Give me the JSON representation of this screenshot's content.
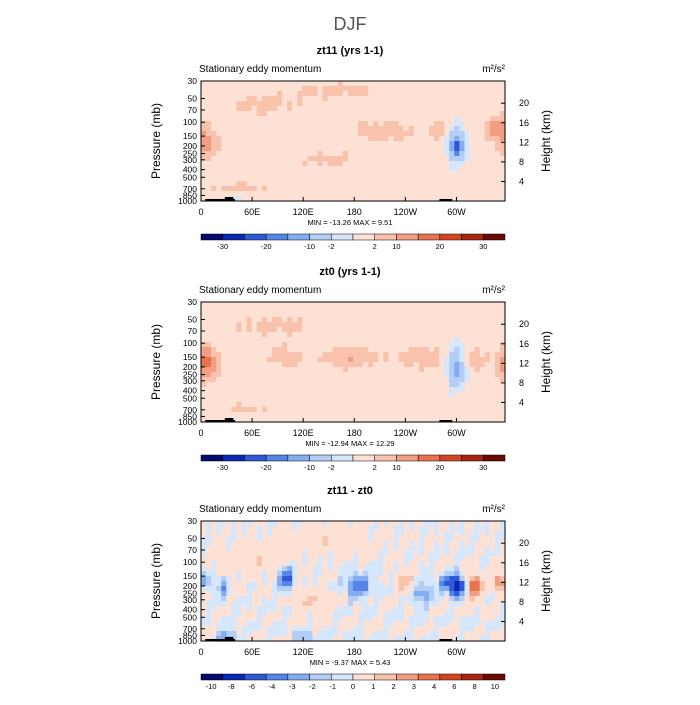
{
  "page": {
    "title": "DJF"
  },
  "colors": {
    "cmap": [
      "#050a6e",
      "#0b28b3",
      "#2f58d6",
      "#5585e6",
      "#84acf0",
      "#b2cdf6",
      "#d6e6fb",
      "#fde1d5",
      "#f8c2ad",
      "#f19e82",
      "#e7734f",
      "#d4451f",
      "#a82412",
      "#6b0a05"
    ],
    "background_field": "#d6e6fb",
    "topography": "#000000"
  },
  "chart_data": [
    {
      "type": "heatmap",
      "title": "zt11 (yrs 1-1)",
      "subtitle_left": "Stationary eddy momentum",
      "subtitle_right": "m²/s²",
      "ylabel": "Pressure (mb)",
      "ylabel_right": "Height (km)",
      "x_ticks": [
        "0",
        "60E",
        "120E",
        "180",
        "120W",
        "60W"
      ],
      "x_tick_values": [
        0,
        60,
        120,
        180,
        240,
        300
      ],
      "xlim": [
        0,
        357
      ],
      "y_ticks": [
        "30",
        "50",
        "70",
        "100",
        "150",
        "200",
        "250",
        "300",
        "400",
        "500",
        "700",
        "850",
        "1000"
      ],
      "y_tick_values": [
        30,
        50,
        70,
        100,
        150,
        200,
        250,
        300,
        400,
        500,
        700,
        850,
        1000
      ],
      "ylim": [
        30,
        1000
      ],
      "height_ticks": [
        "20",
        "16",
        "12",
        "8",
        "4"
      ],
      "height_tick_values": [
        20,
        16,
        12,
        8,
        4
      ],
      "stats": "MIN = -13.26   MAX =   9.51",
      "colorbar_labels": [
        "-30",
        "-20",
        "-10",
        "-2",
        "2",
        "10",
        "20",
        "30"
      ],
      "contour_levels": [
        -40,
        -30,
        -25,
        -20,
        -15,
        -10,
        -5,
        -2,
        2,
        5,
        10,
        15,
        20,
        25,
        30,
        40
      ],
      "features": [
        {
          "lon": 5,
          "p": 180,
          "value": 7,
          "spread_lon": 10,
          "spread_logp": 0.14
        },
        {
          "lon": 300,
          "p": 190,
          "value": -11,
          "spread_lon": 8,
          "spread_logp": 0.17
        },
        {
          "lon": 300,
          "p": 210,
          "value": -13,
          "spread_lon": 4,
          "spread_logp": 0.08
        },
        {
          "lon": 280,
          "p": 120,
          "value": 4,
          "spread_lon": 10,
          "spread_logp": 0.1
        },
        {
          "lon": 345,
          "p": 120,
          "value": 6,
          "spread_lon": 10,
          "spread_logp": 0.12
        },
        {
          "lon": 215,
          "p": 130,
          "value": 4,
          "spread_lon": 25,
          "spread_logp": 0.1
        },
        {
          "lon": 70,
          "p": 60,
          "value": 3,
          "spread_lon": 35,
          "spread_logp": 0.1
        },
        {
          "lon": 160,
          "p": 40,
          "value": 3,
          "spread_lon": 40,
          "spread_logp": 0.08
        },
        {
          "lon": 45,
          "p": 700,
          "value": 4,
          "spread_lon": 20,
          "spread_logp": 0.06
        },
        {
          "lon": 150,
          "p": 300,
          "value": 3,
          "spread_lon": 25,
          "spread_logp": 0.08
        },
        {
          "lon": 40,
          "p": 900,
          "value": -6,
          "spread_lon": 4,
          "spread_logp": 0.04
        }
      ]
    },
    {
      "type": "heatmap",
      "title": "zt0 (yrs 1-1)",
      "subtitle_left": "Stationary eddy momentum",
      "subtitle_right": "m²/s²",
      "ylabel": "Pressure (mb)",
      "ylabel_right": "Height (km)",
      "x_ticks": [
        "0",
        "60E",
        "120E",
        "180",
        "120W",
        "60W"
      ],
      "x_tick_values": [
        0,
        60,
        120,
        180,
        240,
        300
      ],
      "xlim": [
        0,
        357
      ],
      "y_ticks": [
        "30",
        "50",
        "70",
        "100",
        "150",
        "200",
        "250",
        "300",
        "400",
        "500",
        "700",
        "850",
        "1000"
      ],
      "y_tick_values": [
        30,
        50,
        70,
        100,
        150,
        200,
        250,
        300,
        400,
        500,
        700,
        850,
        1000
      ],
      "ylim": [
        30,
        1000
      ],
      "height_ticks": [
        "20",
        "16",
        "12",
        "8",
        "4"
      ],
      "height_tick_values": [
        20,
        16,
        12,
        8,
        4
      ],
      "stats": "MIN = -12.94   MAX =  12.29",
      "colorbar_labels": [
        "-30",
        "-20",
        "-10",
        "-2",
        "2",
        "10",
        "20",
        "30"
      ],
      "contour_levels": [
        -40,
        -30,
        -25,
        -20,
        -15,
        -10,
        -5,
        -2,
        2,
        5,
        10,
        15,
        20,
        25,
        30,
        40
      ],
      "features": [
        {
          "lon": 5,
          "p": 180,
          "value": 12,
          "spread_lon": 10,
          "spread_logp": 0.14
        },
        {
          "lon": 300,
          "p": 200,
          "value": -12,
          "spread_lon": 8,
          "spread_logp": 0.18
        },
        {
          "lon": 320,
          "p": 160,
          "value": 5,
          "spread_lon": 10,
          "spread_logp": 0.1
        },
        {
          "lon": 175,
          "p": 150,
          "value": 5,
          "spread_lon": 25,
          "spread_logp": 0.1
        },
        {
          "lon": 100,
          "p": 150,
          "value": 4,
          "spread_lon": 15,
          "spread_logp": 0.1
        },
        {
          "lon": 90,
          "p": 60,
          "value": 3,
          "spread_lon": 40,
          "spread_logp": 0.1
        },
        {
          "lon": 260,
          "p": 150,
          "value": 4,
          "spread_lon": 20,
          "spread_logp": 0.12
        },
        {
          "lon": 50,
          "p": 700,
          "value": 3,
          "spread_lon": 20,
          "spread_logp": 0.06
        },
        {
          "lon": 40,
          "p": 900,
          "value": -5,
          "spread_lon": 4,
          "spread_logp": 0.04
        }
      ]
    },
    {
      "type": "heatmap",
      "title": "zt11 - zt0",
      "subtitle_left": "Stationary eddy momentum",
      "subtitle_right": "m²/s²",
      "ylabel": "Pressure (mb)",
      "ylabel_right": "Height (km)",
      "x_ticks": [
        "0",
        "60E",
        "120E",
        "180",
        "120W",
        "60W"
      ],
      "x_tick_values": [
        0,
        60,
        120,
        180,
        240,
        300
      ],
      "xlim": [
        0,
        357
      ],
      "y_ticks": [
        "30",
        "50",
        "70",
        "100",
        "150",
        "200",
        "250",
        "300",
        "400",
        "500",
        "700",
        "850",
        "1000"
      ],
      "y_tick_values": [
        30,
        50,
        70,
        100,
        150,
        200,
        250,
        300,
        400,
        500,
        700,
        850,
        1000
      ],
      "ylim": [
        30,
        1000
      ],
      "height_ticks": [
        "20",
        "16",
        "12",
        "8",
        "4"
      ],
      "height_tick_values": [
        20,
        16,
        12,
        8,
        4
      ],
      "stats": "MIN =  -9.37   MAX =   5.43",
      "colorbar_labels": [
        "-10",
        "-8",
        "-6",
        "-4",
        "-3",
        "-2",
        "-1",
        "0",
        "1",
        "2",
        "3",
        "4",
        "6",
        "8",
        "10"
      ],
      "contour_levels": [
        -12,
        -10,
        -8,
        -6,
        -4,
        -3,
        -2,
        -1,
        0,
        1,
        2,
        3,
        4,
        6,
        8,
        10,
        12
      ],
      "features": [
        {
          "lon": 300,
          "p": 200,
          "value": -9,
          "spread_lon": 6,
          "spread_logp": 0.09
        },
        {
          "lon": 287,
          "p": 180,
          "value": -3,
          "spread_lon": 6,
          "spread_logp": 0.08
        },
        {
          "lon": 322,
          "p": 200,
          "value": 5.4,
          "spread_lon": 6,
          "spread_logp": 0.12
        },
        {
          "lon": 350,
          "p": 180,
          "value": 4,
          "spread_lon": 6,
          "spread_logp": 0.1
        },
        {
          "lon": 100,
          "p": 160,
          "value": -5,
          "spread_lon": 6,
          "spread_logp": 0.1
        },
        {
          "lon": 185,
          "p": 200,
          "value": -4,
          "spread_lon": 10,
          "spread_logp": 0.1
        },
        {
          "lon": 240,
          "p": 180,
          "value": 3,
          "spread_lon": 8,
          "spread_logp": 0.1
        },
        {
          "lon": 5,
          "p": 170,
          "value": -3,
          "spread_lon": 4,
          "spread_logp": 0.08
        },
        {
          "lon": 25,
          "p": 200,
          "value": -3,
          "spread_lon": 4,
          "spread_logp": 0.1
        },
        {
          "lon": 260,
          "p": 250,
          "value": -3,
          "spread_lon": 8,
          "spread_logp": 0.1
        },
        {
          "lon": 60,
          "p": 90,
          "value": 1.5,
          "spread_lon": 30,
          "spread_logp": 0.15
        },
        {
          "lon": 150,
          "p": 50,
          "value": 1.5,
          "spread_lon": 40,
          "spread_logp": 0.12
        },
        {
          "lon": 130,
          "p": 300,
          "value": 2,
          "spread_lon": 15,
          "spread_logp": 0.1
        },
        {
          "lon": 30,
          "p": 880,
          "value": -3,
          "spread_lon": 8,
          "spread_logp": 0.05
        },
        {
          "lon": 120,
          "p": 880,
          "value": -2,
          "spread_lon": 10,
          "spread_logp": 0.05
        }
      ]
    }
  ]
}
